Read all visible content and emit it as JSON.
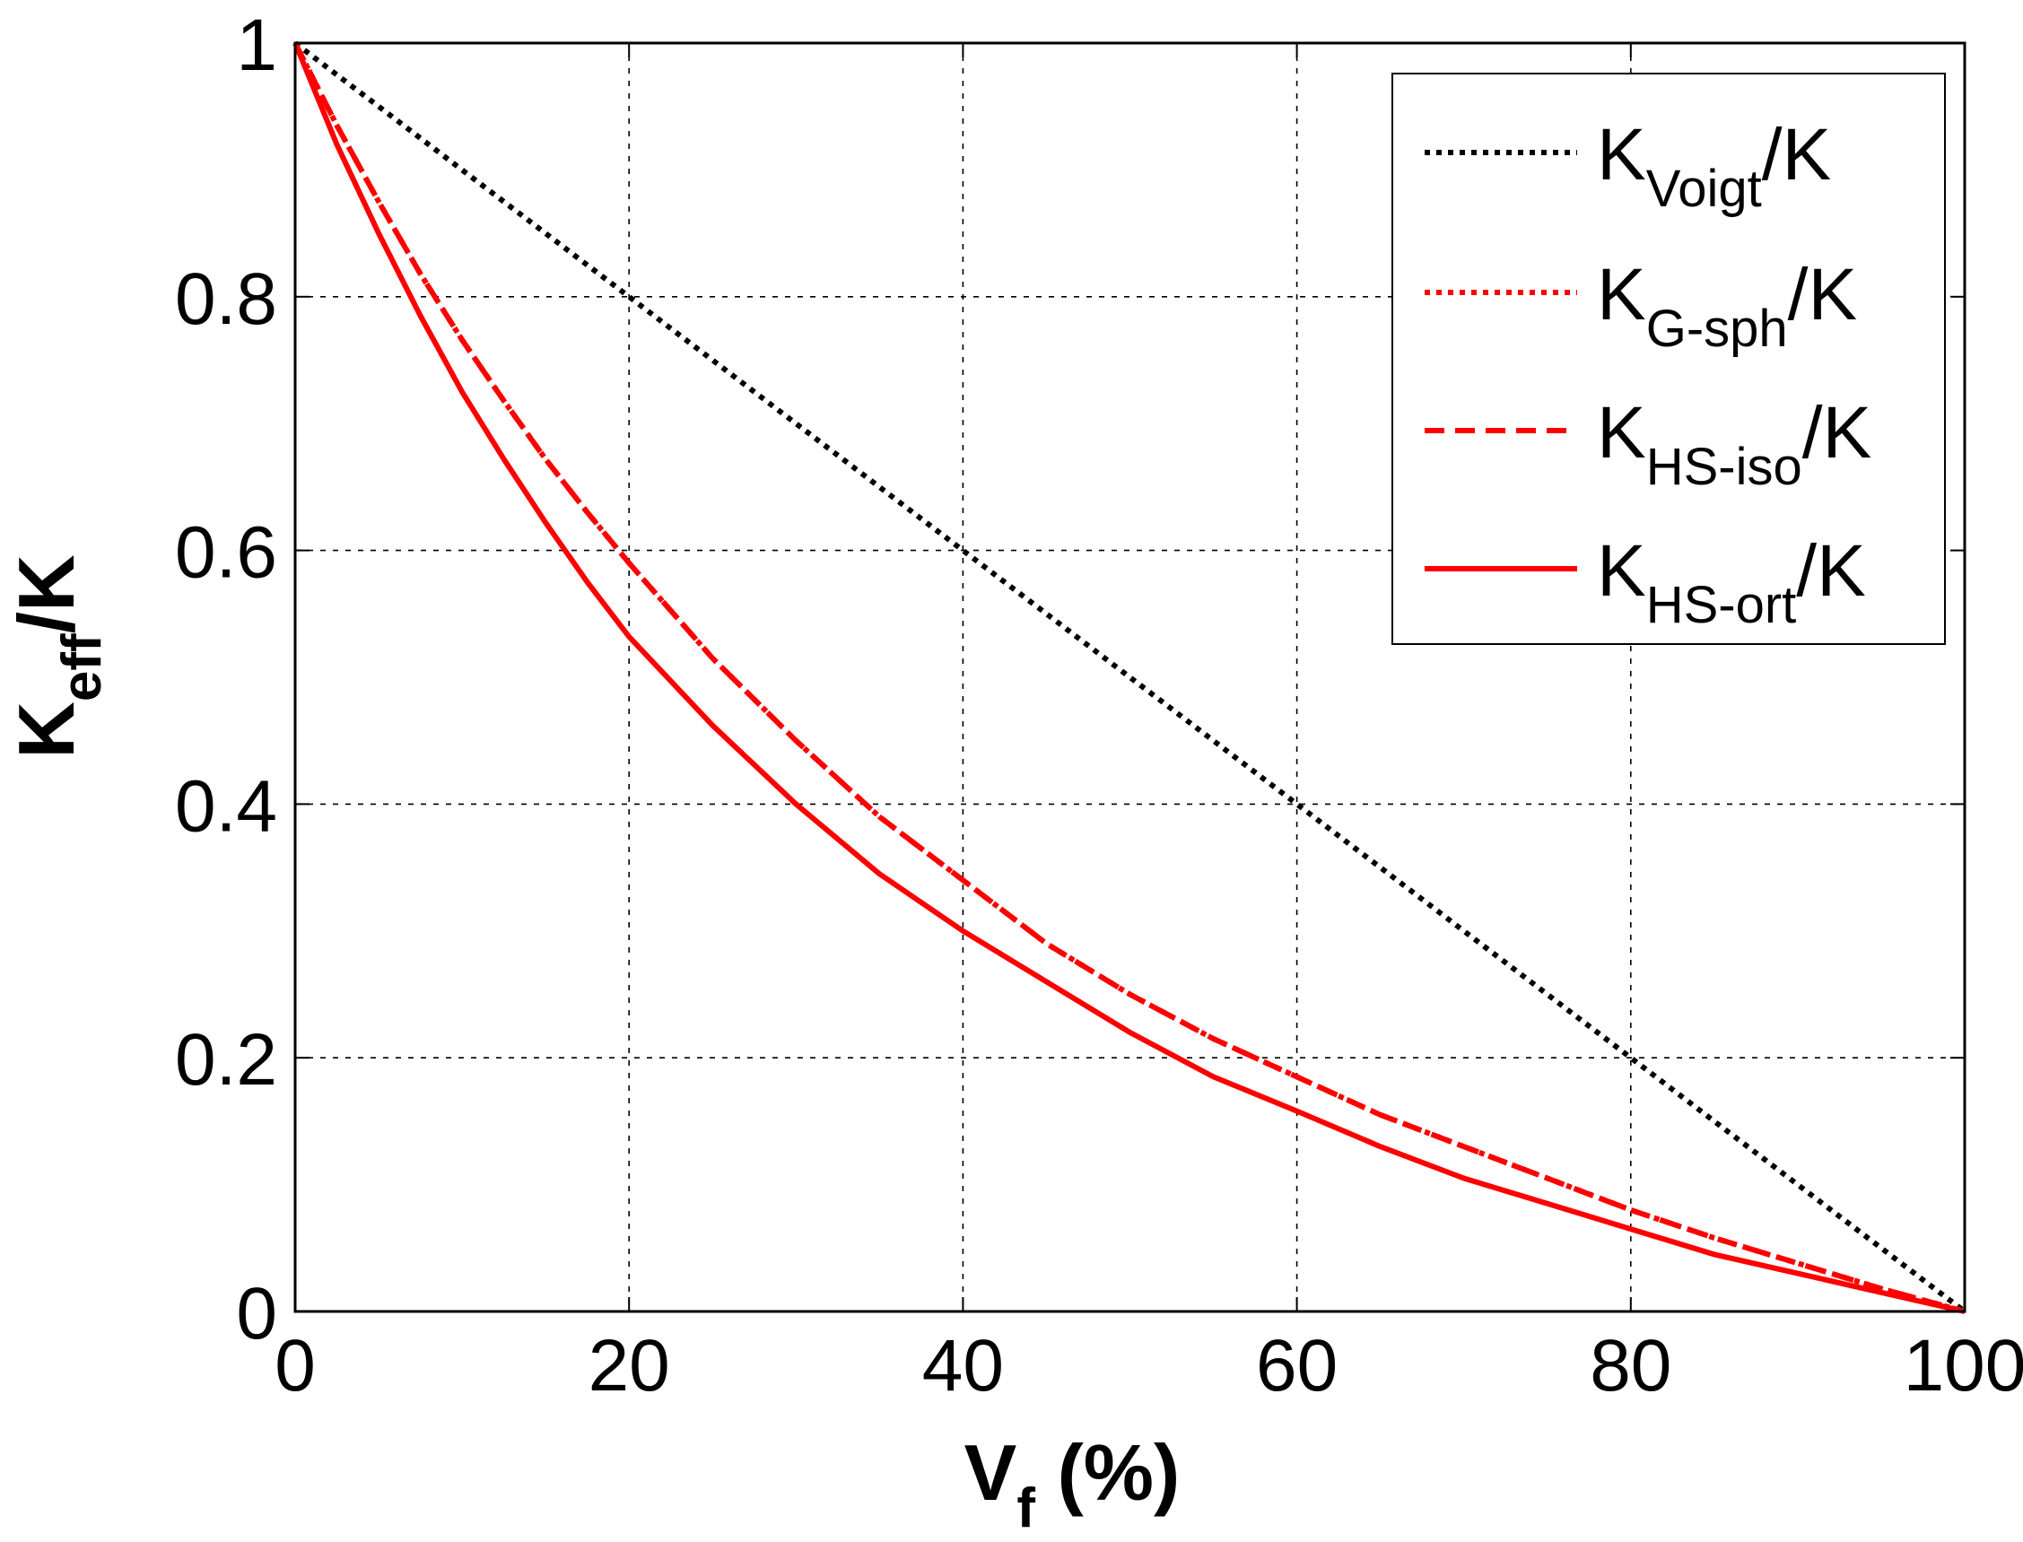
{
  "chart_data": {
    "type": "line",
    "title": "",
    "xlabel": {
      "main": "V",
      "sub": "f",
      "suffix": " (%)"
    },
    "ylabel": {
      "main": "K",
      "sub": "eff",
      "suffix": "/K"
    },
    "xlim": [
      0,
      100
    ],
    "ylim": [
      0,
      1
    ],
    "xticks": [
      0,
      20,
      40,
      60,
      80,
      100
    ],
    "yticks": [
      0,
      0.2,
      0.4,
      0.6,
      0.8,
      1
    ],
    "xtick_labels": [
      "0",
      "20",
      "40",
      "60",
      "80",
      "100"
    ],
    "ytick_labels": [
      "0",
      "0.2",
      "0.4",
      "0.6",
      "0.8",
      "1"
    ],
    "grid": true,
    "legend_position": "top-right",
    "x": [
      0,
      2.5,
      5,
      7.5,
      10,
      12.5,
      15,
      17.5,
      20,
      25,
      30,
      35,
      40,
      45,
      50,
      55,
      60,
      65,
      70,
      75,
      80,
      85,
      90,
      95,
      100
    ],
    "series": [
      {
        "name": {
          "main": "K",
          "sub": "Voigt",
          "suffix": "/K"
        },
        "color": "#000000",
        "style": "dotted",
        "values": [
          1,
          0.975,
          0.95,
          0.925,
          0.9,
          0.875,
          0.85,
          0.825,
          0.8,
          0.75,
          0.7,
          0.65,
          0.6,
          0.55,
          0.5,
          0.45,
          0.4,
          0.35,
          0.3,
          0.25,
          0.2,
          0.15,
          0.1,
          0.05,
          0
        ]
      },
      {
        "name": {
          "main": "K",
          "sub": "G-sph",
          "suffix": "/K"
        },
        "color": "#ff0000",
        "style": "dotted",
        "values": [
          1,
          0.935,
          0.875,
          0.818,
          0.766,
          0.718,
          0.672,
          0.63,
          0.59,
          0.515,
          0.45,
          0.39,
          0.34,
          0.29,
          0.25,
          0.215,
          0.185,
          0.155,
          0.13,
          0.105,
          0.08,
          0.058,
          0.038,
          0.018,
          0
        ]
      },
      {
        "name": {
          "main": "K",
          "sub": "HS-iso",
          "suffix": "/K"
        },
        "color": "#ff0000",
        "style": "dashed",
        "values": [
          1,
          0.935,
          0.875,
          0.818,
          0.766,
          0.718,
          0.672,
          0.63,
          0.59,
          0.515,
          0.45,
          0.39,
          0.34,
          0.29,
          0.25,
          0.215,
          0.185,
          0.155,
          0.13,
          0.105,
          0.08,
          0.058,
          0.038,
          0.018,
          0
        ]
      },
      {
        "name": {
          "main": "K",
          "sub": "HS-ort",
          "suffix": "/K"
        },
        "color": "#ff0000",
        "style": "solid",
        "values": [
          1,
          0.92,
          0.85,
          0.785,
          0.725,
          0.672,
          0.622,
          0.575,
          0.532,
          0.462,
          0.4,
          0.345,
          0.3,
          0.26,
          0.22,
          0.185,
          0.158,
          0.13,
          0.105,
          0.085,
          0.065,
          0.045,
          0.03,
          0.015,
          0
        ]
      }
    ]
  }
}
